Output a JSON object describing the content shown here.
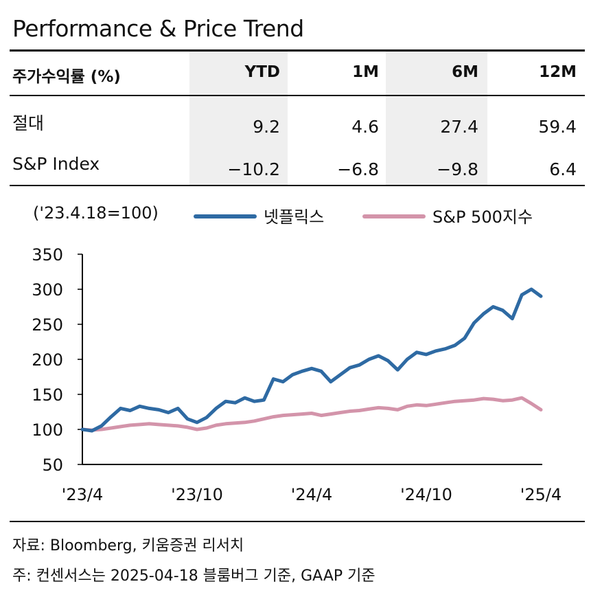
{
  "title": "Performance & Price Trend",
  "table": {
    "header": [
      "주가수익률 (%)",
      "YTD",
      "1M",
      "6M",
      "12M"
    ],
    "rows": [
      {
        "label": "절대",
        "values": [
          "9.2",
          "4.6",
          "27.4",
          "59.4"
        ]
      },
      {
        "label": "S&P Index",
        "values": [
          "−10.2",
          "−6.8",
          "−9.8",
          "6.4"
        ]
      }
    ]
  },
  "legend": {
    "base_note": "('23.4.18=100)",
    "series1": "넷플릭스",
    "series2": "S&P 500지수"
  },
  "colors": {
    "netflix": "#2e6aa3",
    "sp500": "#d394aa",
    "shade": "#efefef"
  },
  "chart_data": {
    "type": "line",
    "ylim": [
      50,
      350
    ],
    "yticks": [
      "350",
      "300",
      "250",
      "200",
      "150",
      "100",
      "50"
    ],
    "xticks": [
      "'23/4",
      "'23/10",
      "'24/4",
      "'24/10",
      "'25/4"
    ],
    "x_months": [
      0,
      0.5,
      1,
      1.5,
      2,
      2.5,
      3,
      3.5,
      4,
      4.5,
      5,
      5.5,
      6,
      6.5,
      7,
      7.5,
      8,
      8.5,
      9,
      9.5,
      10,
      10.5,
      11,
      11.5,
      12,
      12.5,
      13,
      13.5,
      14,
      14.5,
      15,
      15.5,
      16,
      16.5,
      17,
      17.5,
      18,
      18.5,
      19,
      19.5,
      20,
      20.5,
      21,
      21.5,
      22,
      22.5,
      23,
      23.5,
      24
    ],
    "series": [
      {
        "name": "넷플릭스",
        "values": [
          100,
          98,
          105,
          118,
          130,
          127,
          133,
          130,
          128,
          124,
          130,
          115,
          110,
          117,
          130,
          140,
          138,
          145,
          140,
          142,
          172,
          168,
          178,
          183,
          187,
          183,
          168,
          178,
          188,
          192,
          200,
          205,
          198,
          185,
          200,
          210,
          207,
          212,
          215,
          220,
          230,
          252,
          265,
          275,
          270,
          258,
          292,
          300,
          290
        ]
      },
      {
        "name": "S&P 500지수",
        "values": [
          100,
          99,
          100,
          102,
          104,
          106,
          107,
          108,
          107,
          106,
          105,
          103,
          100,
          102,
          106,
          108,
          109,
          110,
          112,
          115,
          118,
          120,
          121,
          122,
          123,
          120,
          122,
          124,
          126,
          127,
          129,
          131,
          130,
          128,
          133,
          135,
          134,
          136,
          138,
          140,
          141,
          142,
          144,
          143,
          141,
          142,
          145,
          137,
          128
        ]
      }
    ]
  },
  "footnotes": {
    "source": "자료: Bloomberg, 키움증권 리서치",
    "note": "주: 컨센서스는 2025-04-18 블룸버그 기준, GAAP 기준"
  }
}
